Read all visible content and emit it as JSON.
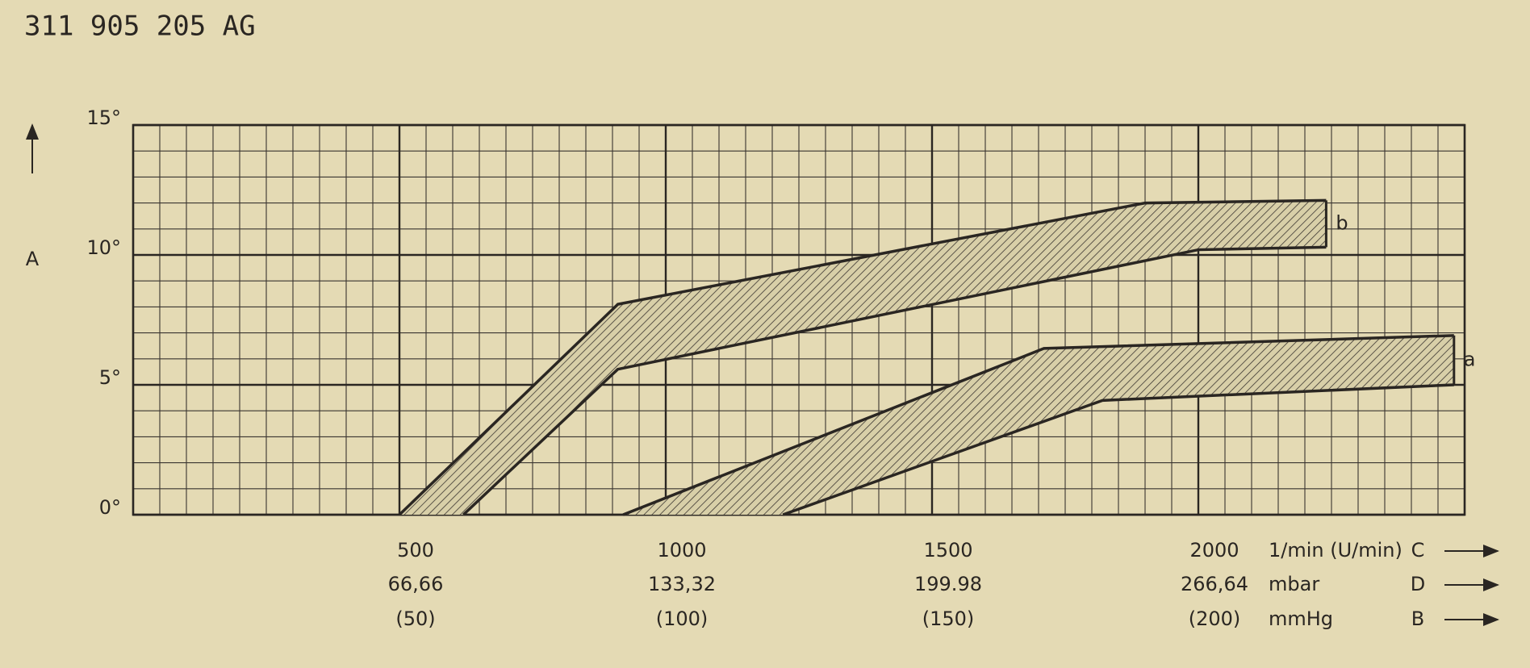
{
  "chart_data": {
    "type": "band",
    "title": "311 905 205 AG",
    "ylabel": "A",
    "ylim": [
      0,
      15
    ],
    "yticks": [
      {
        "value": 0,
        "label": "0°"
      },
      {
        "value": 5,
        "label": "5°"
      },
      {
        "value": 10,
        "label": "10°"
      },
      {
        "value": 15,
        "label": "15°"
      }
    ],
    "xlim": [
      0,
      2500
    ],
    "xticks": [
      500,
      1000,
      1500,
      2000
    ],
    "xlabel": "1/min (U/min)",
    "xletter": "C",
    "x2lim": [
      0,
      333.3
    ],
    "x2ticks": [
      {
        "value": 66.66,
        "label": "66,66"
      },
      {
        "value": 133.32,
        "label": "133,32"
      },
      {
        "value": 199.98,
        "label": "199.98"
      },
      {
        "value": 266.64,
        "label": "266,64"
      }
    ],
    "x2label": "mbar",
    "x2letter": "D",
    "x3lim": [
      0,
      250
    ],
    "x3ticks": [
      {
        "value": 50,
        "label": "(50)"
      },
      {
        "value": 100,
        "label": "(100)"
      },
      {
        "value": 150,
        "label": "(150)"
      },
      {
        "value": 200,
        "label": "(200)"
      }
    ],
    "x3label": "mmHg",
    "x3letter": "B",
    "grid": true,
    "color": "#2a2622",
    "bands": [
      {
        "name": "b",
        "upper": {
          "x": [
            500,
            910,
            1900,
            2240
          ],
          "values": [
            0,
            8.1,
            12,
            12.1
          ]
        },
        "lower": {
          "x": [
            620,
            910,
            2000,
            2240
          ],
          "values": [
            0,
            5.6,
            10.2,
            10.3
          ]
        }
      },
      {
        "name": "a",
        "upper": {
          "x": [
            920,
            1710,
            2480
          ],
          "values": [
            0,
            6.4,
            6.9
          ]
        },
        "lower": {
          "x": [
            1220,
            1820,
            2480
          ],
          "values": [
            0,
            4.4,
            5.0
          ]
        }
      }
    ]
  }
}
